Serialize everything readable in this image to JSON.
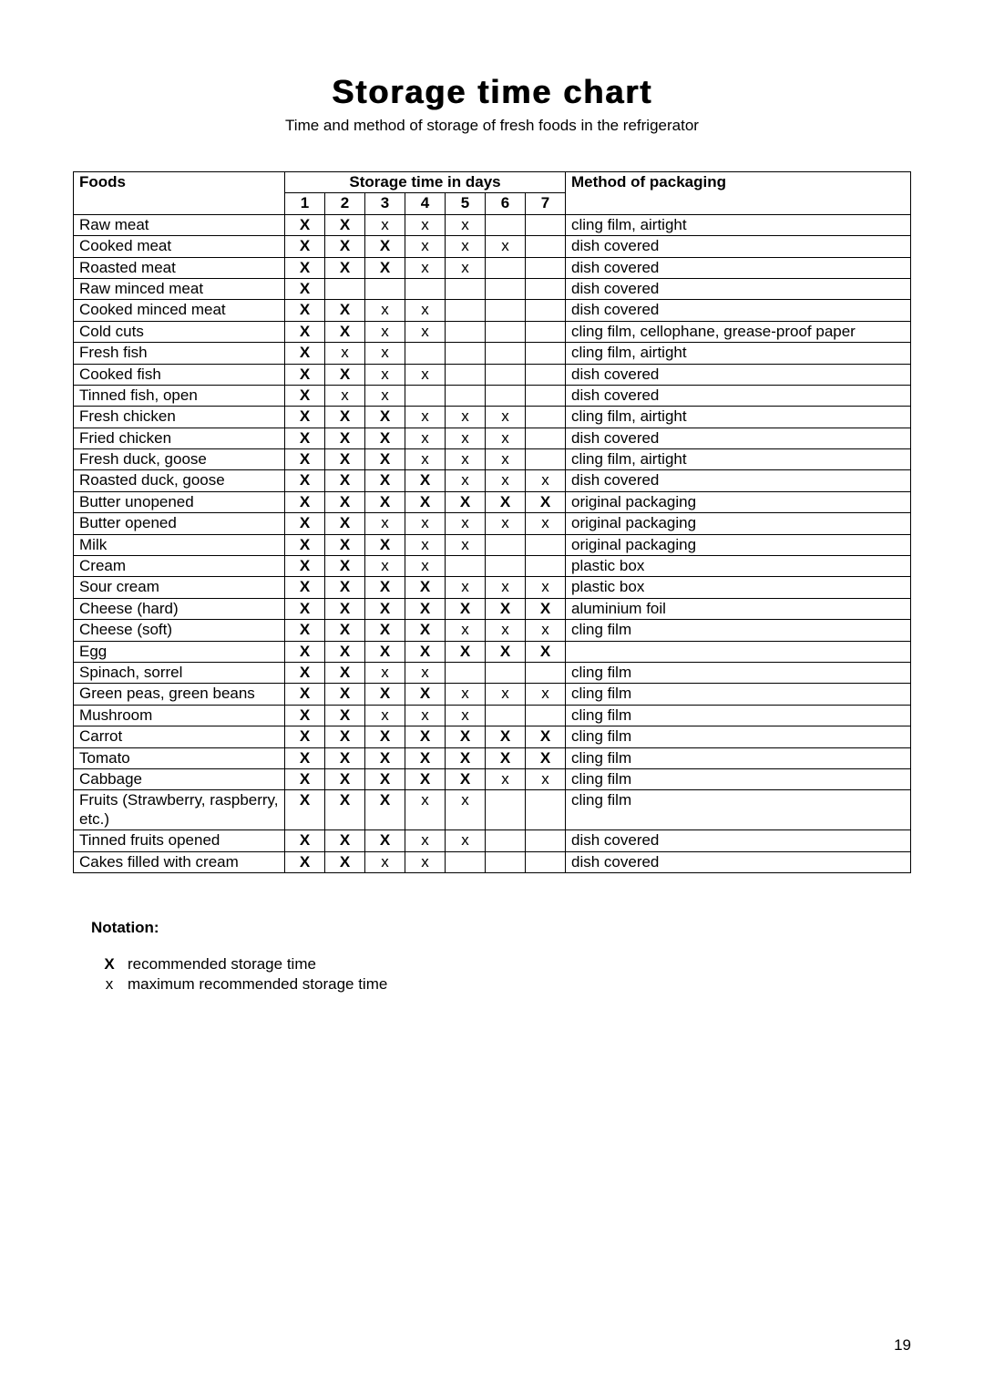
{
  "title": "Storage time chart",
  "subtitle": "Time and method of storage of fresh foods in the refrigerator",
  "headers": {
    "foods": "Foods",
    "days": "Storage time in days",
    "method": "Method of packaging",
    "day_labels": [
      "1",
      "2",
      "3",
      "4",
      "5",
      "6",
      "7"
    ]
  },
  "legend": {
    "rec": "X",
    "max": "x"
  },
  "rows": [
    {
      "food": "Raw meat",
      "days": [
        "X",
        "X",
        "x",
        "x",
        "x",
        "",
        ""
      ],
      "method": "cling film, airtight"
    },
    {
      "food": "Cooked meat",
      "days": [
        "X",
        "X",
        "X",
        "x",
        "x",
        "x",
        ""
      ],
      "method": "dish covered"
    },
    {
      "food": "Roasted meat",
      "days": [
        "X",
        "X",
        "X",
        "x",
        "x",
        "",
        ""
      ],
      "method": "dish covered"
    },
    {
      "food": "Raw minced meat",
      "days": [
        "X",
        "",
        "",
        "",
        "",
        "",
        ""
      ],
      "method": "dish covered"
    },
    {
      "food": "Cooked minced meat",
      "days": [
        "X",
        "X",
        "x",
        "x",
        "",
        "",
        ""
      ],
      "method": "dish covered"
    },
    {
      "food": "Cold cuts",
      "days": [
        "X",
        "X",
        "x",
        "x",
        "",
        "",
        ""
      ],
      "method": "cling film, cellophane, grease-proof paper"
    },
    {
      "food": "Fresh fish",
      "days": [
        "X",
        "x",
        "x",
        "",
        "",
        "",
        ""
      ],
      "method": "cling film, airtight"
    },
    {
      "food": "Cooked fish",
      "days": [
        "X",
        "X",
        "x",
        "x",
        "",
        "",
        ""
      ],
      "method": "dish covered"
    },
    {
      "food": "Tinned fish, open",
      "days": [
        "X",
        "x",
        "x",
        "",
        "",
        "",
        ""
      ],
      "method": "dish covered"
    },
    {
      "food": "Fresh chicken",
      "days": [
        "X",
        "X",
        "X",
        "x",
        "x",
        "x",
        ""
      ],
      "method": "cling film, airtight"
    },
    {
      "food": "Fried chicken",
      "days": [
        "X",
        "X",
        "X",
        "x",
        "x",
        "x",
        ""
      ],
      "method": "dish covered"
    },
    {
      "food": "Fresh duck, goose",
      "days": [
        "X",
        "X",
        "X",
        "x",
        "x",
        "x",
        ""
      ],
      "method": "cling film, airtight"
    },
    {
      "food": "Roasted duck, goose",
      "days": [
        "X",
        "X",
        "X",
        "X",
        "x",
        "x",
        "x"
      ],
      "method": "dish covered"
    },
    {
      "food": "Butter unopened",
      "days": [
        "X",
        "X",
        "X",
        "X",
        "X",
        "X",
        "X"
      ],
      "method": "original packaging"
    },
    {
      "food": "Butter opened",
      "days": [
        "X",
        "X",
        "x",
        "x",
        "x",
        "x",
        "x"
      ],
      "method": "original packaging"
    },
    {
      "food": "Milk",
      "days": [
        "X",
        "X",
        "X",
        "x",
        "x",
        "",
        ""
      ],
      "method": "original packaging"
    },
    {
      "food": "Cream",
      "days": [
        "X",
        "X",
        "x",
        "x",
        "",
        "",
        ""
      ],
      "method": "plastic box"
    },
    {
      "food": "Sour cream",
      "days": [
        "X",
        "X",
        "X",
        "X",
        "x",
        "x",
        "x"
      ],
      "method": "plastic box"
    },
    {
      "food": "Cheese (hard)",
      "days": [
        "X",
        "X",
        "X",
        "X",
        "X",
        "X",
        "X"
      ],
      "method": "aluminium foil"
    },
    {
      "food": "Cheese (soft)",
      "days": [
        "X",
        "X",
        "X",
        "X",
        "x",
        "x",
        "x"
      ],
      "method": "cling film"
    },
    {
      "food": "Egg",
      "days": [
        "X",
        "X",
        "X",
        "X",
        "X",
        "X",
        "X"
      ],
      "method": ""
    },
    {
      "food": "Spinach, sorrel",
      "days": [
        "X",
        "X",
        "x",
        "x",
        "",
        "",
        ""
      ],
      "method": "cling film"
    },
    {
      "food": "Green peas, green beans",
      "days": [
        "X",
        "X",
        "X",
        "X",
        "x",
        "x",
        "x"
      ],
      "method": "cling film"
    },
    {
      "food": "Mushroom",
      "days": [
        "X",
        "X",
        "x",
        "x",
        "x",
        "",
        ""
      ],
      "method": "cling film"
    },
    {
      "food": "Carrot",
      "days": [
        "X",
        "X",
        "X",
        "X",
        "X",
        "X",
        "X"
      ],
      "method": "cling film"
    },
    {
      "food": "Tomato",
      "days": [
        "X",
        "X",
        "X",
        "X",
        "X",
        "X",
        "X"
      ],
      "method": "cling film"
    },
    {
      "food": "Cabbage",
      "days": [
        "X",
        "X",
        "X",
        "X",
        "X",
        "x",
        "x"
      ],
      "method": "cling film"
    },
    {
      "food": "Fruits (Strawberry, raspberry, etc.)",
      "days": [
        "X",
        "X",
        "X",
        "x",
        "x",
        "",
        ""
      ],
      "method": "cling film"
    },
    {
      "food": "Tinned fruits opened",
      "days": [
        "X",
        "X",
        "X",
        "x",
        "x",
        "",
        ""
      ],
      "method": "dish covered"
    },
    {
      "food": "Cakes filled with cream",
      "days": [
        "X",
        "X",
        "x",
        "x",
        "",
        "",
        ""
      ],
      "method": "dish covered"
    }
  ],
  "notation": {
    "title": "Notation:",
    "items": [
      {
        "key": "X",
        "bold": true,
        "text": "recommended storage time"
      },
      {
        "key": "x",
        "bold": false,
        "text": "maximum recommended storage time"
      }
    ]
  },
  "page_number": "19"
}
